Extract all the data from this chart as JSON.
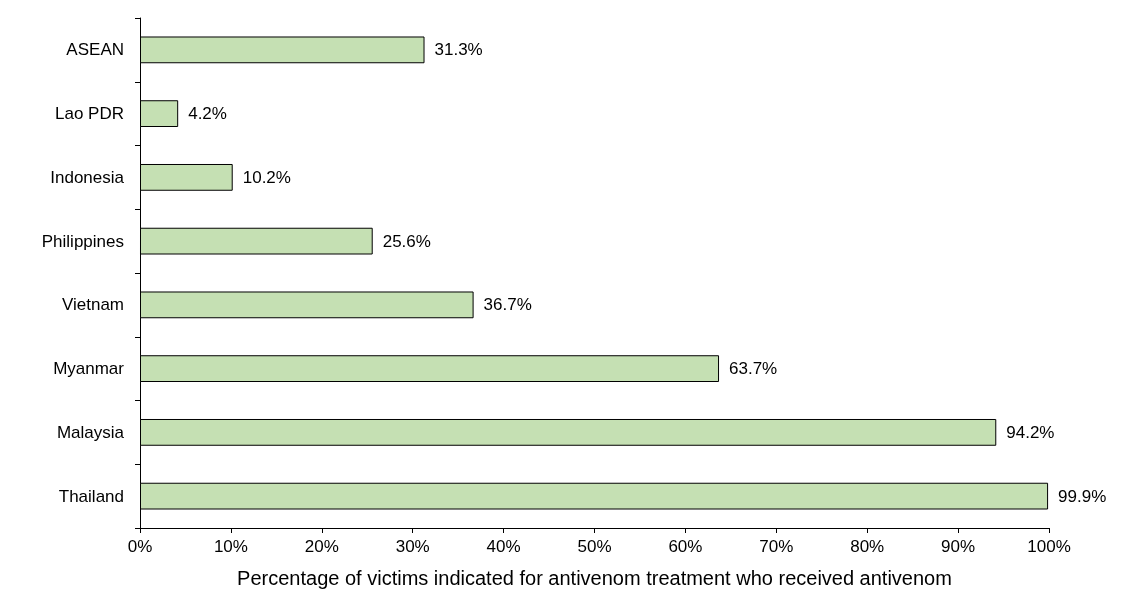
{
  "chart_data": {
    "type": "bar",
    "orientation": "horizontal",
    "xlabel": "Percentage of victims indicated for antivenom treatment who received antivenom",
    "categories": [
      "ASEAN",
      "Lao PDR",
      "Indonesia",
      "Philippines",
      "Vietnam",
      "Myanmar",
      "Malaysia",
      "Thailand"
    ],
    "values": [
      31.3,
      4.2,
      10.2,
      25.6,
      36.7,
      63.7,
      94.2,
      99.9
    ],
    "value_labels": [
      "31.3%",
      "4.2%",
      "10.2%",
      "25.6%",
      "36.7%",
      "63.7%",
      "94.2%",
      "99.9%"
    ],
    "color": "#c5e0b3",
    "xlim": [
      0,
      100
    ],
    "xticks": [
      {
        "value": 0,
        "label": "0%"
      },
      {
        "value": 10,
        "label": "10%"
      },
      {
        "value": 20,
        "label": "20%"
      },
      {
        "value": 30,
        "label": "30%"
      },
      {
        "value": 40,
        "label": "40%"
      },
      {
        "value": 50,
        "label": "50%"
      },
      {
        "value": 60,
        "label": "60%"
      },
      {
        "value": 70,
        "label": "70%"
      },
      {
        "value": 80,
        "label": "80%"
      },
      {
        "value": 90,
        "label": "90%"
      },
      {
        "value": 100,
        "label": "100%"
      }
    ],
    "grid": false
  }
}
